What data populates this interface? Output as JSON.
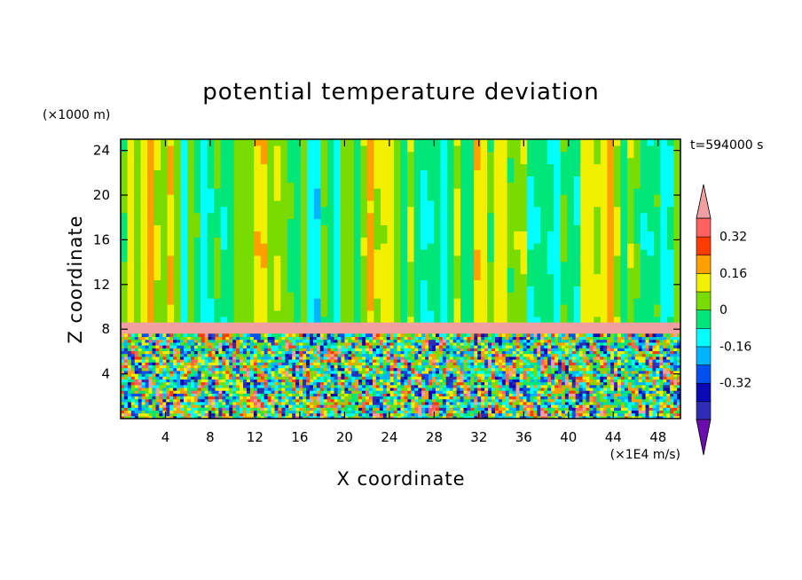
{
  "chart_data": {
    "type": "heatmap",
    "title": "potential temperature deviation",
    "xlabel": "X coordinate",
    "ylabel": "Z coordinate",
    "x_unit": "(×1E4 m/s)",
    "y_unit": "(×1000 m)",
    "time_label": "t=594000 s",
    "xlim": [
      0,
      50
    ],
    "ylim": [
      0,
      25
    ],
    "x_ticks": [
      4,
      8,
      12,
      16,
      20,
      24,
      28,
      32,
      36,
      40,
      44,
      48
    ],
    "y_ticks": [
      4,
      8,
      12,
      16,
      20,
      24
    ],
    "colorbar": {
      "levels": [
        -0.48,
        -0.4,
        -0.32,
        -0.24,
        -0.16,
        -0.08,
        0,
        0.08,
        0.16,
        0.24,
        0.32,
        0.4
      ],
      "colors": [
        "#6a0dad",
        "#2d2db4",
        "#0a0ab4",
        "#0050f0",
        "#00b4ff",
        "#00ffff",
        "#00e678",
        "#78dc00",
        "#f0f000",
        "#ffa000",
        "#ff3c00",
        "#ff6060",
        "#f0a0a0"
      ],
      "tick_labels": [
        "0.32",
        "0.16",
        "0",
        "-0.16",
        "-0.32"
      ],
      "tick_values": [
        0.32,
        0.16,
        0,
        -0.16,
        -0.32
      ],
      "extend": "both"
    },
    "field_summary": {
      "upper_region_z_range": [
        8.6,
        25
      ],
      "upper_region_typical_value": 0.04,
      "inversion_layer_z_range": [
        7.6,
        8.6
      ],
      "inversion_layer_value": 0.44,
      "turbulent_layer_z_range": [
        0,
        7.6
      ],
      "turbulent_layer_value_range": [
        -0.48,
        0.44
      ]
    }
  }
}
